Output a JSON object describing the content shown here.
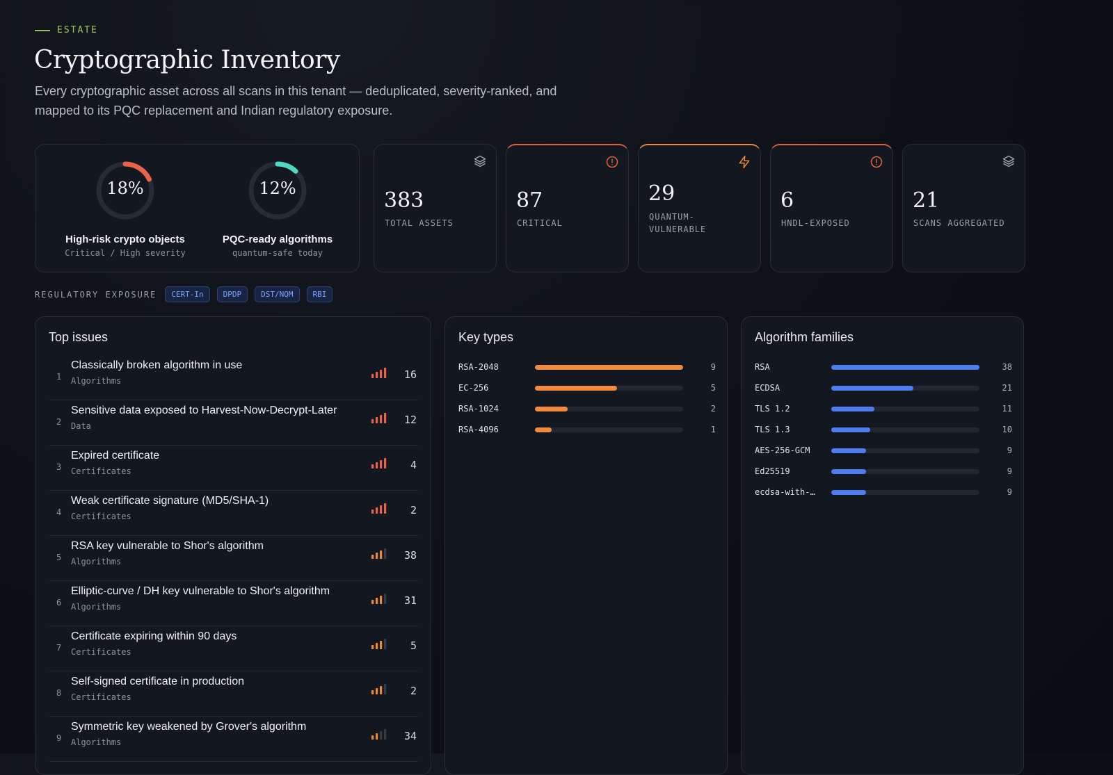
{
  "header": {
    "eyebrow": "ESTATE",
    "title": "Cryptographic Inventory",
    "subtitle": "Every cryptographic asset across all scans in this tenant — deduplicated, severity-ranked, and mapped to its PQC replacement and Indian regulatory exposure."
  },
  "gauges": [
    {
      "percent": "18%",
      "fraction": 0.18,
      "label": "High-risk crypto objects",
      "sub": "Critical / High severity",
      "color": "#e8634a"
    },
    {
      "percent": "12%",
      "fraction": 0.12,
      "label": "PQC-ready algorithms",
      "sub": "quantum-safe today",
      "color": "#4fd8c4"
    }
  ],
  "stats": [
    {
      "value": "383",
      "label": "TOTAL ASSETS",
      "icon": "layers-icon"
    },
    {
      "value": "87",
      "label": "CRITICAL",
      "icon": "alert-circle-icon"
    },
    {
      "value": "29",
      "label": "QUANTUM-VULNERABLE",
      "icon": "lightning-icon"
    },
    {
      "value": "6",
      "label": "HNDL-EXPOSED",
      "icon": "alert-circle-icon"
    },
    {
      "value": "21",
      "label": "SCANS AGGREGATED",
      "icon": "layers-icon"
    }
  ],
  "regulatory": {
    "label": "REGULATORY EXPOSURE",
    "chips": [
      "CERT-In",
      "DPDP",
      "DST/NQM",
      "RBI"
    ]
  },
  "top_issues": {
    "title": "Top issues",
    "items": [
      {
        "rank": "1",
        "title": "Classically broken algorithm in use",
        "category": "Algorithms",
        "count": "16",
        "severity": 4
      },
      {
        "rank": "2",
        "title": "Sensitive data exposed to Harvest-Now-Decrypt-Later",
        "category": "Data",
        "count": "12",
        "severity": 4
      },
      {
        "rank": "3",
        "title": "Expired certificate",
        "category": "Certificates",
        "count": "4",
        "severity": 4
      },
      {
        "rank": "4",
        "title": "Weak certificate signature (MD5/SHA-1)",
        "category": "Certificates",
        "count": "2",
        "severity": 4
      },
      {
        "rank": "5",
        "title": "RSA key vulnerable to Shor's algorithm",
        "category": "Algorithms",
        "count": "38",
        "severity": 3
      },
      {
        "rank": "6",
        "title": "Elliptic-curve / DH key vulnerable to Shor's algorithm",
        "category": "Algorithms",
        "count": "31",
        "severity": 3
      },
      {
        "rank": "7",
        "title": "Certificate expiring within 90 days",
        "category": "Certificates",
        "count": "5",
        "severity": 3
      },
      {
        "rank": "8",
        "title": "Self-signed certificate in production",
        "category": "Certificates",
        "count": "2",
        "severity": 3
      },
      {
        "rank": "9",
        "title": "Symmetric key weakened by Grover's algorithm",
        "category": "Algorithms",
        "count": "34",
        "severity": 2
      }
    ]
  },
  "key_types": {
    "title": "Key types",
    "color": "#f28a3c",
    "max": 9,
    "items": [
      {
        "label": "RSA-2048",
        "value": 9
      },
      {
        "label": "EC-256",
        "value": 5
      },
      {
        "label": "RSA-1024",
        "value": 2
      },
      {
        "label": "RSA-4096",
        "value": 1
      }
    ]
  },
  "algorithm_families": {
    "title": "Algorithm families",
    "color": "#4f7df0",
    "max": 38,
    "items": [
      {
        "label": "RSA",
        "value": 38
      },
      {
        "label": "ECDSA",
        "value": 21
      },
      {
        "label": "TLS 1.2",
        "value": 11
      },
      {
        "label": "TLS 1.3",
        "value": 10
      },
      {
        "label": "AES-256-GCM",
        "value": 9
      },
      {
        "label": "Ed25519",
        "value": 9
      },
      {
        "label": "ecdsa-with-…",
        "value": 9
      }
    ]
  }
}
